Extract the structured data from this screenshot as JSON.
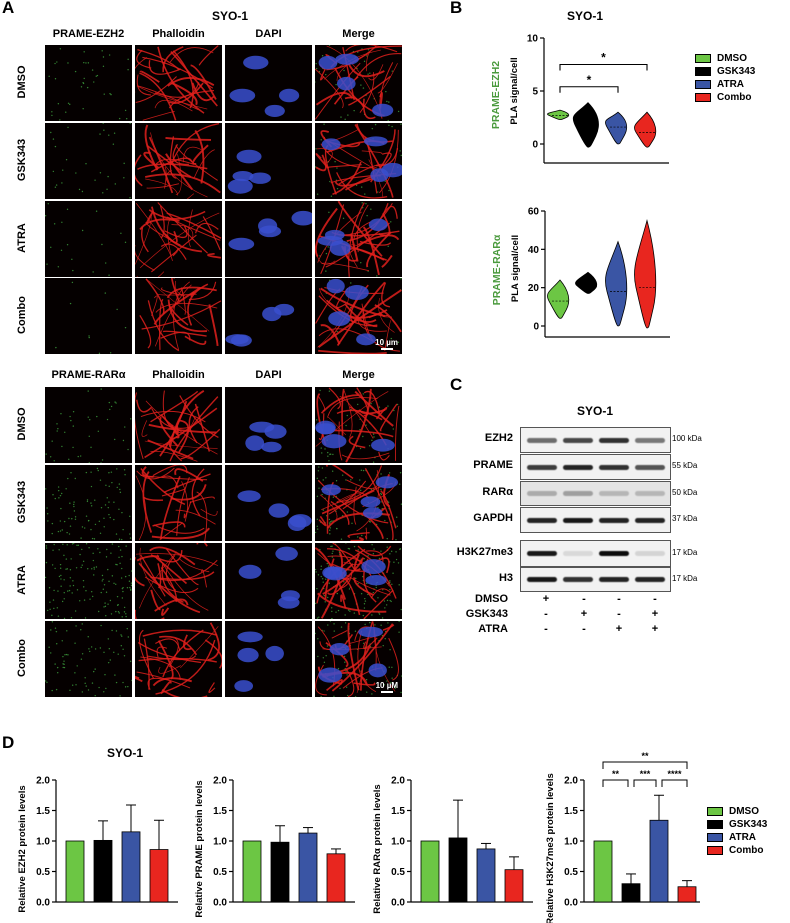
{
  "panel_a": {
    "letter": "A",
    "title": "SYO-1",
    "block1": {
      "columns": [
        "PRAME-EZH2",
        "Phalloidin",
        "DAPI",
        "Merge"
      ],
      "rows": [
        "DMSO",
        "GSK343",
        "ATRA",
        "Combo"
      ],
      "scale_bar": "10 µm"
    },
    "block2": {
      "columns": [
        "PRAME-RARα",
        "Phalloidin",
        "DAPI",
        "Merge"
      ],
      "rows": [
        "DMSO",
        "GSK343",
        "ATRA",
        "Combo"
      ],
      "scale_bar": "10 µM"
    }
  },
  "panel_b": {
    "letter": "B",
    "title": "SYO-1",
    "legend": [
      {
        "label": "DMSO",
        "color": "#6cc644"
      },
      {
        "label": "GSK343",
        "color": "#000000"
      },
      {
        "label": "ATRA",
        "color": "#3a55a4"
      },
      {
        "label": "Combo",
        "color": "#e8261f"
      }
    ]
  },
  "panel_c": {
    "letter": "C",
    "title": "SYO-1",
    "blots": [
      {
        "label": "EZH2",
        "kda": "100 kDa"
      },
      {
        "label": "PRAME",
        "kda": "55 kDa"
      },
      {
        "label": "RARα",
        "kda": "50 kDa"
      },
      {
        "label": "GAPDH",
        "kda": "37 kDa"
      },
      {
        "label": "H3K27me3",
        "kda": "17 kDa"
      },
      {
        "label": "H3",
        "kda": "17 kDa"
      }
    ],
    "treatments": [
      {
        "label": "DMSO",
        "values": [
          "+",
          "-",
          "-",
          "-"
        ]
      },
      {
        "label": "GSK343",
        "values": [
          "-",
          "+",
          "-",
          "+"
        ]
      },
      {
        "label": "ATRA",
        "values": [
          "-",
          "-",
          "+",
          "+"
        ]
      }
    ]
  },
  "panel_d": {
    "letter": "D",
    "title": "SYO-1",
    "legend": [
      {
        "label": "DMSO",
        "color": "#6cc644"
      },
      {
        "label": "GSK343",
        "color": "#000000"
      },
      {
        "label": "ATRA",
        "color": "#3a55a4"
      },
      {
        "label": "Combo",
        "color": "#e8261f"
      }
    ]
  },
  "chart_data": [
    {
      "type": "violin",
      "title": "SYO-1",
      "row_label": "PRAME-EZH2",
      "ylabel": "PLA signal/cell",
      "ylim": [
        0,
        10
      ],
      "yticks": [
        0,
        5,
        10
      ],
      "categories": [
        "DMSO",
        "GSK343",
        "ATRA",
        "Combo"
      ],
      "medians": [
        2.7,
        1.8,
        1.6,
        1.1
      ],
      "ranges": [
        [
          2.3,
          3.2
        ],
        [
          -0.3,
          3.9
        ],
        [
          0.0,
          3.0
        ],
        [
          -0.3,
          3.0
        ]
      ],
      "significance": [
        {
          "from": "DMSO",
          "to": "ATRA",
          "label": "*"
        },
        {
          "from": "DMSO",
          "to": "Combo",
          "label": "*"
        }
      ]
    },
    {
      "type": "violin",
      "row_label": "PRAME-RARα",
      "ylabel": "PLA signal/cell",
      "ylim": [
        0,
        60
      ],
      "yticks": [
        0,
        20,
        40,
        60
      ],
      "categories": [
        "DMSO",
        "GSK343",
        "ATRA",
        "Combo"
      ],
      "medians": [
        13,
        21,
        18,
        20
      ],
      "ranges": [
        [
          4,
          24
        ],
        [
          17,
          28
        ],
        [
          0,
          44
        ],
        [
          -1,
          55
        ]
      ]
    },
    {
      "type": "bar",
      "ylabel": "Relative EZH2 protein levels",
      "ylim": [
        0,
        2.0
      ],
      "yticks": [
        "0.0",
        "0.5",
        "1.0",
        "1.5",
        "2.0"
      ],
      "categories": [
        "DMSO",
        "GSK343",
        "ATRA",
        "Combo"
      ],
      "values": [
        1.0,
        1.01,
        1.15,
        0.86
      ],
      "errors": [
        0,
        0.32,
        0.44,
        0.48
      ]
    },
    {
      "type": "bar",
      "ylabel": "Relative PRAME protein levels",
      "ylim": [
        0,
        2.0
      ],
      "yticks": [
        "0.0",
        "0.5",
        "1.0",
        "1.5",
        "2.0"
      ],
      "categories": [
        "DMSO",
        "GSK343",
        "ATRA",
        "Combo"
      ],
      "values": [
        1.0,
        0.98,
        1.13,
        0.79
      ],
      "errors": [
        0,
        0.27,
        0.09,
        0.08
      ]
    },
    {
      "type": "bar",
      "ylabel": "Relative RARα protein levels",
      "ylim": [
        0,
        2.0
      ],
      "yticks": [
        "0.0",
        "0.5",
        "1.0",
        "1.5",
        "2.0"
      ],
      "categories": [
        "DMSO",
        "GSK343",
        "ATRA",
        "Combo"
      ],
      "values": [
        1.0,
        1.05,
        0.87,
        0.53
      ],
      "errors": [
        0,
        0.62,
        0.09,
        0.21
      ]
    },
    {
      "type": "bar",
      "ylabel": "Relative H3K27me3 protein levels",
      "ylim": [
        0,
        2.0
      ],
      "yticks": [
        "0.0",
        "0.5",
        "1.0",
        "1.5",
        "2.0"
      ],
      "categories": [
        "DMSO",
        "GSK343",
        "ATRA",
        "Combo"
      ],
      "values": [
        1.0,
        0.3,
        1.34,
        0.25
      ],
      "errors": [
        0,
        0.16,
        0.41,
        0.1
      ],
      "significance": [
        {
          "from": "DMSO",
          "to": "GSK343",
          "label": "**"
        },
        {
          "from": "GSK343",
          "to": "ATRA",
          "label": "***"
        },
        {
          "from": "ATRA",
          "to": "Combo",
          "label": "****"
        },
        {
          "from": "DMSO",
          "to": "Combo",
          "label": "**"
        }
      ]
    }
  ]
}
